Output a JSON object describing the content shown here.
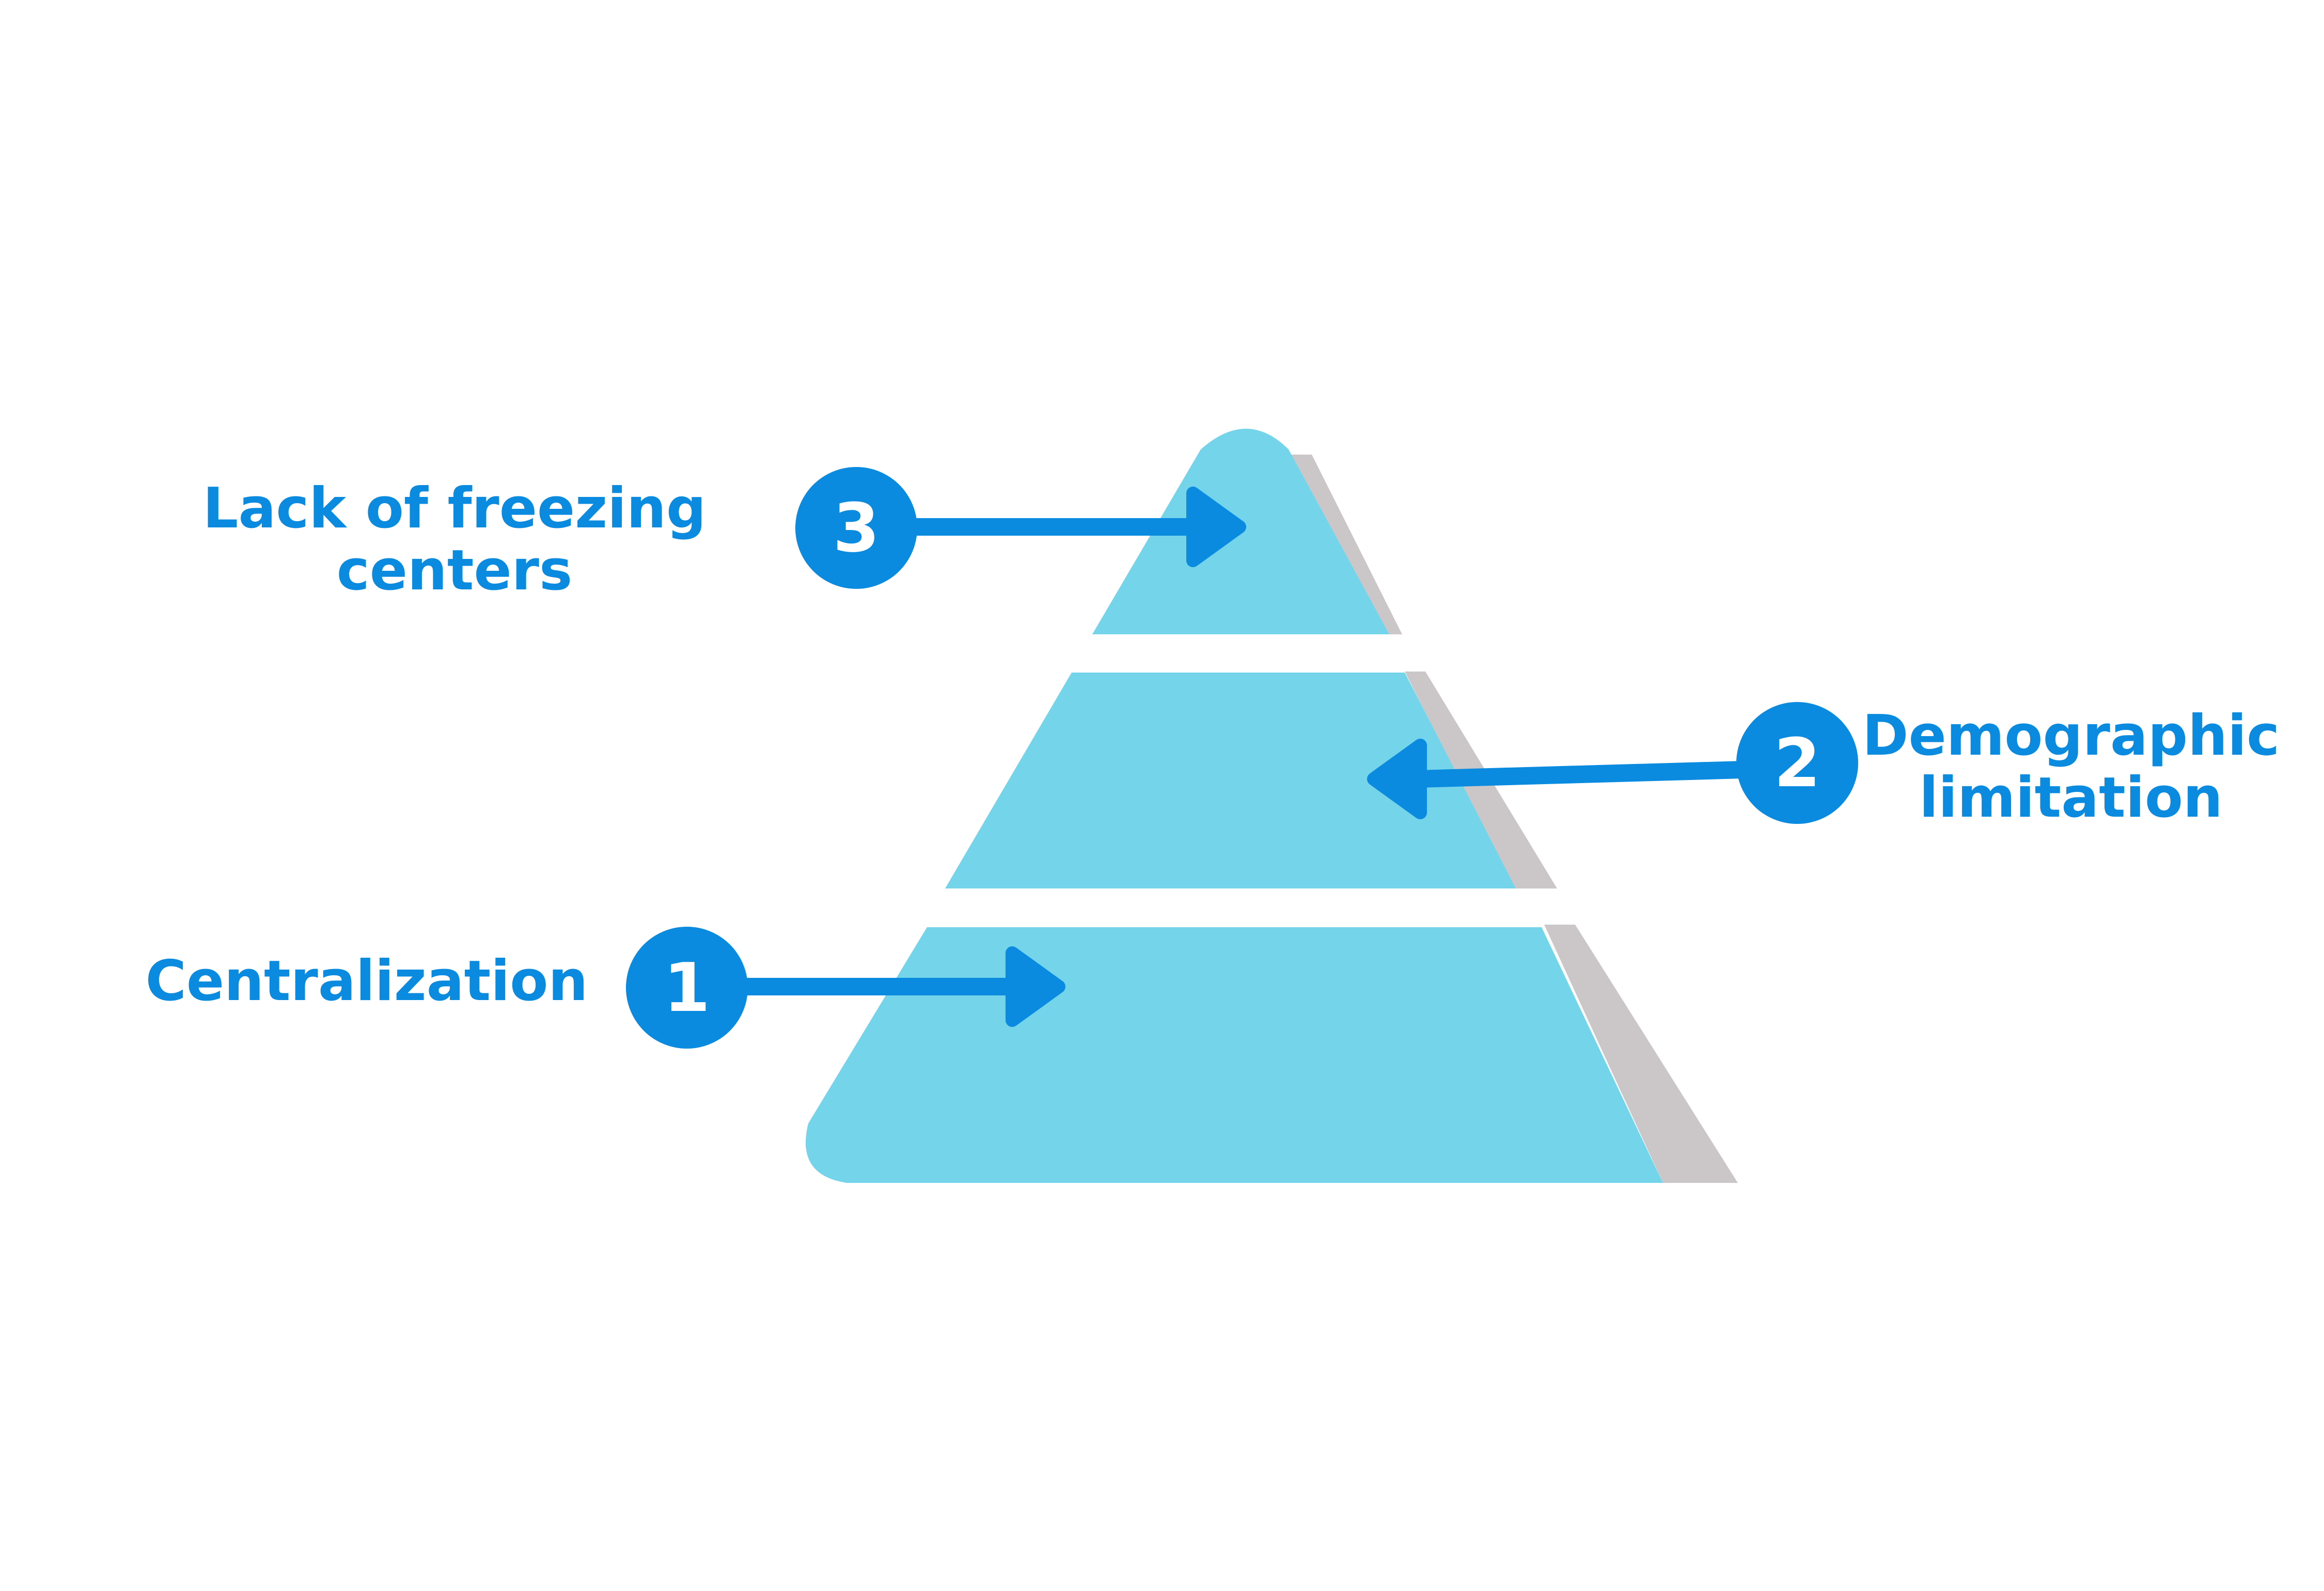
{
  "colors": {
    "layer_fill": "#73d4ea",
    "shadow": "#cbc7c9",
    "accent": "#0a8be0",
    "number_text": "#ffffff",
    "background": "#ffffff"
  },
  "steps": [
    {
      "number": "1",
      "label_lines": [
        "Centralization"
      ]
    },
    {
      "number": "2",
      "label_lines": [
        "Demographic",
        "limitation"
      ]
    },
    {
      "number": "3",
      "label_lines": [
        "Lack of freezing",
        "centers"
      ]
    }
  ]
}
